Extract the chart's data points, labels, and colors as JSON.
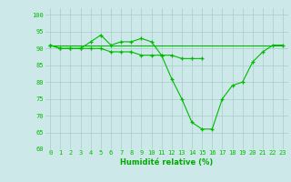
{
  "background_color": "#cce8e8",
  "grid_color": "#aacccc",
  "line_color": "#00bb00",
  "xlabel": "Humidité relative (%)",
  "xlabel_color": "#00aa00",
  "ylim": [
    60,
    102
  ],
  "xlim": [
    -0.5,
    23.5
  ],
  "yticks": [
    60,
    65,
    70,
    75,
    80,
    85,
    90,
    95,
    100
  ],
  "xtick_labels": [
    "0",
    "1",
    "2",
    "3",
    "4",
    "5",
    "6",
    "7",
    "8",
    "9",
    "10",
    "11",
    "12",
    "13",
    "14",
    "15",
    "16",
    "17",
    "18",
    "19",
    "20",
    "21",
    "22",
    "23"
  ],
  "series1": [
    91,
    90,
    90,
    90,
    92,
    94,
    91,
    92,
    92,
    93,
    92,
    88,
    81,
    75,
    68,
    66,
    66,
    75,
    79,
    80,
    86,
    89,
    91,
    91
  ],
  "series2": [
    91,
    90,
    90,
    90,
    90,
    90,
    89,
    89,
    89,
    88,
    88,
    88,
    88,
    87,
    87,
    87,
    null,
    null,
    null,
    null,
    null,
    null,
    null,
    null
  ],
  "series3_x": [
    0,
    23
  ],
  "series3_y": [
    91,
    91
  ]
}
